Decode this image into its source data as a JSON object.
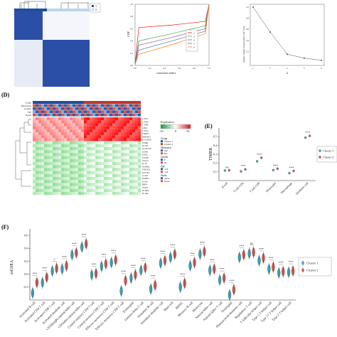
{
  "colors": {
    "cluster1": "#3ab0c8",
    "cluster2": "#e2584e",
    "cluster1_dark": "#1d4f9c",
    "cluster2_dark": "#c0392b",
    "heat_high": "#d7191c",
    "heat_low": "#1a9641",
    "heat_mid": "#ffffff",
    "consensus": "#2b4fa6"
  },
  "panels": {
    "D": "(D)",
    "E": "(E)",
    "F": "(F)"
  },
  "chart_data": [
    {
      "type": "heatmap",
      "id": "consensus-matrix",
      "legend": [
        "1",
        "2"
      ],
      "clusters": [
        {
          "name": "1",
          "size_fraction": 0.38
        },
        {
          "name": "2",
          "size_fraction": 0.62
        }
      ]
    },
    {
      "type": "line",
      "id": "cdf-plot",
      "xlabel": "consensus index",
      "ylabel": "CDF",
      "xlim": [
        0,
        1
      ],
      "ylim": [
        0,
        1
      ],
      "xticks": [
        "0.0",
        "0.2",
        "0.4",
        "0.6",
        "0.8",
        "1.0"
      ],
      "yticks": [
        "0.0",
        "0.2",
        "0.4",
        "0.6",
        "0.8",
        "1.0"
      ],
      "legend": [
        "2",
        "3",
        "4",
        "5",
        "6"
      ],
      "series_colors": [
        "#e41a1c",
        "#4daf4a",
        "#984ea3",
        "#377eb8",
        "#ff7f00"
      ],
      "series": [
        {
          "name": "2",
          "x": [
            0,
            0.05,
            0.5,
            0.95,
            1
          ],
          "y": [
            0.02,
            0.62,
            0.66,
            0.72,
            1.0
          ]
        },
        {
          "name": "3",
          "x": [
            0,
            0.05,
            0.5,
            0.95,
            1
          ],
          "y": [
            0.02,
            0.4,
            0.52,
            0.65,
            1.0
          ]
        },
        {
          "name": "4",
          "x": [
            0,
            0.05,
            0.5,
            0.95,
            1
          ],
          "y": [
            0.02,
            0.33,
            0.46,
            0.6,
            1.0
          ]
        },
        {
          "name": "5",
          "x": [
            0,
            0.05,
            0.5,
            0.95,
            1
          ],
          "y": [
            0.02,
            0.25,
            0.4,
            0.56,
            1.0
          ]
        },
        {
          "name": "6",
          "x": [
            0,
            0.05,
            0.5,
            0.95,
            1
          ],
          "y": [
            0.02,
            0.18,
            0.34,
            0.52,
            1.0
          ]
        }
      ]
    },
    {
      "type": "line",
      "id": "delta-area",
      "xlabel": "k",
      "ylabel": "relative change in area under CDF curve",
      "xlim": [
        2,
        6
      ],
      "ylim": [
        0,
        1
      ],
      "xticks": [
        "2",
        "3",
        "4",
        "5",
        "6"
      ],
      "yticks": [
        "0.2",
        "0.4",
        "0.6",
        "0.8",
        "1.0"
      ],
      "x": [
        2,
        3,
        4,
        5,
        6
      ],
      "y": [
        1.0,
        0.55,
        0.15,
        0.08,
        0.04
      ]
    },
    {
      "type": "heatmap",
      "id": "expression-heatmap",
      "annotation_rows": [
        "Group",
        "Metastasis",
        "Gender",
        "Age",
        "Status"
      ],
      "genes": [
        "CTSS",
        "CTSD",
        "CTSB",
        "LIPA",
        "CTSA",
        "LIMS1",
        "HMOX1",
        "FCGR3A",
        "CD86",
        "XCR1",
        "CLEC9A",
        "CD83",
        "CD1C",
        "CD1B",
        "CD1A",
        "IL10",
        "TGFB1",
        "VEGFA",
        "LYVE1",
        "CCR7",
        "ENPP1",
        "ICOS",
        "IRF4",
        "CD19",
        "IL2RA",
        "IL1R2"
      ],
      "expression_legend": {
        "title": "Expression",
        "ticks": [
          "-10",
          "0",
          "10"
        ]
      },
      "annotation_legends": [
        {
          "title": "Group",
          "items": [
            "Cluster 1",
            "Cluster 2"
          ]
        },
        {
          "title": "Metastasis",
          "items": [
            "M0",
            "M1"
          ]
        },
        {
          "title": "Gender",
          "items": [
            "F",
            "M"
          ]
        },
        {
          "title": "Age",
          "items": [
            "<18",
            ">18"
          ]
        },
        {
          "title": "Status",
          "items": [
            "Alive",
            "Dead"
          ]
        }
      ]
    },
    {
      "type": "scatter",
      "id": "timer-plot",
      "ylabel": "TIMER",
      "ylim": [
        0.0,
        0.6
      ],
      "yticks": [
        "0.1",
        "0.2",
        "0.3",
        "0.4",
        "0.5"
      ],
      "categories": [
        "B cell",
        "T cell CD4",
        "T cell CD8",
        "Neutrophil",
        "Macrophage",
        "Dendritic cell"
      ],
      "significance": [
        "ns",
        "***",
        "***",
        "***",
        "***",
        "***"
      ],
      "legend": [
        "Cluster 1",
        "Cluster 2"
      ],
      "series": [
        {
          "name": "Cluster 1",
          "values": [
            0.115,
            0.105,
            0.22,
            0.12,
            0.085,
            0.49
          ]
        },
        {
          "name": "Cluster 2",
          "values": [
            0.118,
            0.128,
            0.26,
            0.135,
            0.11,
            0.51
          ]
        }
      ]
    },
    {
      "type": "violin",
      "id": "ssgsea-plot",
      "ylabel": "ssGSEA",
      "ylim": [
        -0.4,
        0.7
      ],
      "yticks": [
        "-0.2",
        "0.0",
        "0.2",
        "0.4",
        "0.6"
      ],
      "legend": [
        "Cluster 1",
        "Cluster 2"
      ],
      "categories": [
        "Activated B cell",
        "Activated CD4 T cell",
        "Activated CD8 T cell",
        "Activated dendritic cell",
        "CD56bright natural killer cell",
        "CD56dim natural killer cell",
        "Central memory CD4 T cell",
        "Central memory CD8 T cell",
        "Effector memeory CD4 T cell",
        "Effector memeory CD8 T cell",
        "Eosinophil",
        "Gamma delta T cell",
        "Immature B cell",
        "Immature dendritic cell",
        "Mast cell",
        "MDSC",
        "Memory B cell",
        "Monocyte",
        "Natural killer cell",
        "Natural killer T cell",
        "Neutrophil",
        "Plasmacytoid dendritic cell",
        "Regulatory T cell",
        "T follicular helper cell",
        "Type 1 T helper cell",
        "Type 17 T helper cell",
        "Type 2 T helper cell"
      ],
      "significance": [
        "***",
        "***",
        "*",
        "***",
        "***",
        "***",
        "***",
        "***",
        "***",
        "***",
        "***",
        "***",
        "***",
        "***",
        "***",
        "***",
        "***",
        "***",
        "***",
        "***",
        "***",
        "***",
        "ns",
        "***",
        "***",
        "***",
        "***"
      ],
      "series": [
        {
          "name": "Cluster 1",
          "values": [
            -0.29,
            -0.13,
            0.05,
            0.08,
            0.3,
            0.42,
            -0.01,
            0.12,
            0.18,
            -0.26,
            -0.06,
            0.06,
            -0.23,
            0.17,
            0.26,
            -0.2,
            0.13,
            0.31,
            0.06,
            -0.09,
            -0.32,
            0.26,
            0.32,
            0.21,
            0.08,
            0.02,
            0.03
          ]
        },
        {
          "name": "Cluster 2",
          "values": [
            -0.13,
            -0.05,
            0.09,
            0.13,
            0.33,
            0.47,
            0.01,
            0.16,
            0.22,
            -0.1,
            -0.01,
            0.1,
            -0.17,
            0.21,
            0.31,
            -0.14,
            0.18,
            0.35,
            0.08,
            -0.06,
            -0.24,
            0.3,
            0.34,
            0.25,
            0.11,
            0.04,
            0.05
          ]
        }
      ]
    }
  ]
}
